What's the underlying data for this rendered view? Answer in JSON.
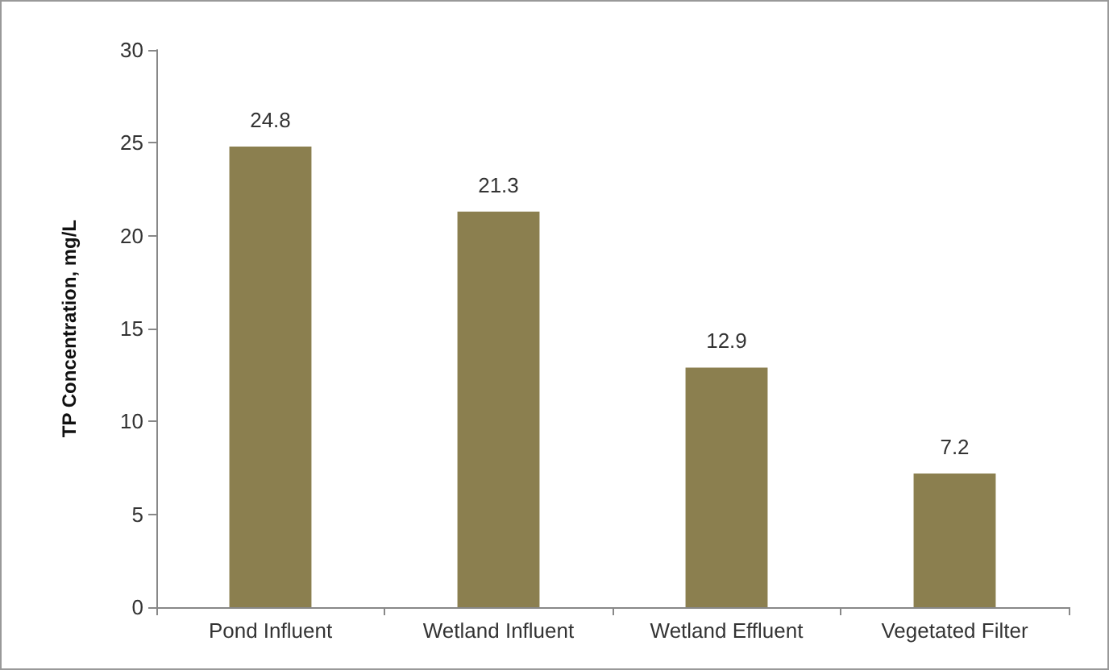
{
  "chart_data": {
    "type": "bar",
    "ylabel": "TP Concentration, mg/L",
    "categories": [
      "Pond Influent",
      "Wetland Influent",
      "Wetland Effluent",
      "Vegetated Filter"
    ],
    "values": [
      24.8,
      21.3,
      12.9,
      7.2
    ],
    "color": "#8b7f4f",
    "ylim": [
      0,
      30
    ],
    "yticks": [
      0,
      5,
      10,
      15,
      20,
      25,
      30
    ],
    "grid": false,
    "data_labels": true
  }
}
